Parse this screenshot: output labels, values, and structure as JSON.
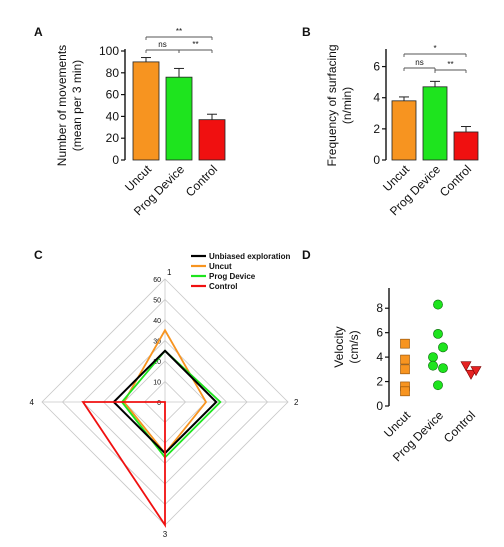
{
  "chart_data": [
    {
      "panel": "A",
      "type": "bar",
      "categories": [
        "Uncut",
        "Prog Device",
        "Control"
      ],
      "values": [
        90,
        76,
        37
      ],
      "errors": [
        4,
        8,
        5
      ],
      "colors": [
        "#f79420",
        "#1ee41e",
        "#f01010"
      ],
      "ylabel": [
        "Number of movements",
        "(mean per 3 min)"
      ],
      "ylim": [
        0,
        100
      ],
      "yticks": [
        0,
        20,
        40,
        60,
        80,
        100
      ],
      "significance": [
        {
          "from": 0,
          "to": 2,
          "label": "**"
        },
        {
          "from": 0,
          "to": 1,
          "label": "ns"
        },
        {
          "from": 1,
          "to": 2,
          "label": "**"
        }
      ]
    },
    {
      "panel": "B",
      "type": "bar",
      "categories": [
        "Uncut",
        "Prog Device",
        "Control"
      ],
      "values": [
        3.8,
        4.7,
        1.8
      ],
      "errors": [
        0.25,
        0.35,
        0.35
      ],
      "colors": [
        "#f79420",
        "#1ee41e",
        "#f01010"
      ],
      "ylabel": [
        "Frequency of surfacing",
        "(n/min)"
      ],
      "ylim": [
        0,
        7
      ],
      "yticks": [
        0,
        2,
        4,
        6
      ],
      "significance": [
        {
          "from": 0,
          "to": 2,
          "label": "*"
        },
        {
          "from": 0,
          "to": 1,
          "label": "ns"
        },
        {
          "from": 1,
          "to": 2,
          "label": "**"
        }
      ]
    },
    {
      "panel": "C",
      "type": "radar",
      "axes": [
        "1",
        "2",
        "3",
        "4"
      ],
      "rmax": 60,
      "rticks": [
        0,
        10,
        20,
        30,
        40,
        50,
        60
      ],
      "series": [
        {
          "name": "Unbiased exploration",
          "color": "#000000",
          "values": [
            25,
            25,
            25,
            25
          ]
        },
        {
          "name": "Uncut",
          "color": "#f79420",
          "values": [
            35,
            20,
            25,
            20
          ]
        },
        {
          "name": "Prog Device",
          "color": "#1ee41e",
          "values": [
            25,
            27,
            27,
            21
          ]
        },
        {
          "name": "Control",
          "color": "#f01010",
          "values": [
            0,
            0,
            60,
            40
          ]
        }
      ]
    },
    {
      "panel": "D",
      "type": "scatter",
      "categories": [
        "Uncut",
        "Prog Device",
        "Control"
      ],
      "ylabel": "Velocity",
      "yunit": "(cm/s)",
      "ylim": [
        0,
        9
      ],
      "yticks": [
        0,
        2,
        4,
        6,
        8
      ],
      "groups": [
        {
          "name": "Uncut",
          "color": "#f79420",
          "marker": "square",
          "points": [
            {
              "x": 0,
              "y": 5.1
            },
            {
              "x": 0,
              "y": 3.8
            },
            {
              "x": 0,
              "y": 3.0
            },
            {
              "x": 0,
              "y": 1.6
            },
            {
              "x": 0,
              "y": 1.2
            }
          ]
        },
        {
          "name": "Prog Device",
          "color": "#1ee41e",
          "marker": "circle",
          "points": [
            {
              "x": -0.25,
              "y": 4.0
            },
            {
              "x": -0.25,
              "y": 3.3
            },
            {
              "x": 0,
              "y": 8.3
            },
            {
              "x": 0,
              "y": 5.9
            },
            {
              "x": 0,
              "y": 1.7
            },
            {
              "x": 0.25,
              "y": 4.8
            },
            {
              "x": 0.25,
              "y": 3.1
            }
          ]
        },
        {
          "name": "Control",
          "color": "#e52222",
          "marker": "triangle-down",
          "points": [
            {
              "x": -0.2,
              "y": 3.3
            },
            {
              "x": 0.05,
              "y": 2.6
            },
            {
              "x": 0.3,
              "y": 2.9
            }
          ]
        }
      ]
    }
  ]
}
